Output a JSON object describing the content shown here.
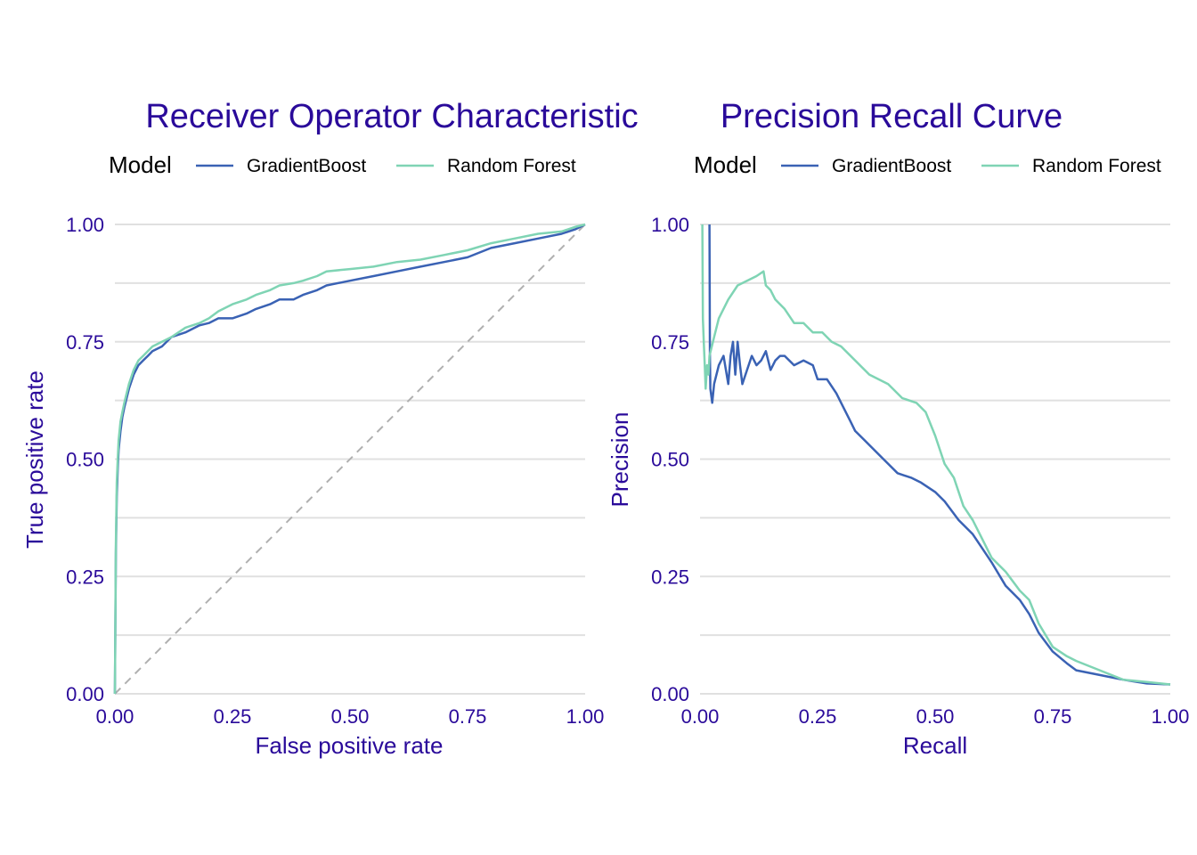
{
  "colors": {
    "accent_text": "#2a0a9a",
    "gradientboost": "#3a62b4",
    "random_forest": "#7fd4b4",
    "gridline": "#e0e0e0",
    "baseline": "#b0b0b0"
  },
  "chart_data": [
    {
      "type": "line",
      "title": "Receiver Operator Characteristic",
      "xlabel": "False positive rate",
      "ylabel": "True positive rate",
      "xlim": [
        0,
        1
      ],
      "ylim": [
        0,
        1
      ],
      "x_ticks": [
        "0.00",
        "0.25",
        "0.50",
        "0.75",
        "1.00"
      ],
      "y_ticks": [
        "0.00",
        "0.25",
        "0.50",
        "0.75",
        "1.00"
      ],
      "grid": true,
      "legend": {
        "title": "Model",
        "placement": "top-left",
        "entries": [
          "GradientBoost",
          "Random Forest"
        ]
      },
      "reference_line": {
        "style": "dashed",
        "from": [
          0,
          0
        ],
        "to": [
          1,
          1
        ]
      },
      "series": [
        {
          "name": "GradientBoost",
          "x": [
            0,
            0.002,
            0.004,
            0.006,
            0.008,
            0.012,
            0.016,
            0.02,
            0.025,
            0.03,
            0.04,
            0.05,
            0.06,
            0.07,
            0.08,
            0.1,
            0.12,
            0.15,
            0.18,
            0.2,
            0.22,
            0.25,
            0.28,
            0.3,
            0.33,
            0.35,
            0.38,
            0.4,
            0.43,
            0.45,
            0.5,
            0.55,
            0.6,
            0.65,
            0.7,
            0.75,
            0.8,
            0.85,
            0.9,
            0.95,
            0.98,
            1.0
          ],
          "y": [
            0,
            0.3,
            0.42,
            0.48,
            0.52,
            0.56,
            0.59,
            0.61,
            0.63,
            0.65,
            0.68,
            0.7,
            0.71,
            0.72,
            0.73,
            0.74,
            0.76,
            0.77,
            0.785,
            0.79,
            0.8,
            0.8,
            0.81,
            0.82,
            0.83,
            0.84,
            0.84,
            0.85,
            0.86,
            0.87,
            0.88,
            0.89,
            0.9,
            0.91,
            0.92,
            0.93,
            0.95,
            0.96,
            0.97,
            0.98,
            0.99,
            1.0
          ]
        },
        {
          "name": "Random Forest",
          "x": [
            0,
            0.002,
            0.004,
            0.006,
            0.008,
            0.012,
            0.016,
            0.02,
            0.025,
            0.03,
            0.04,
            0.05,
            0.06,
            0.07,
            0.08,
            0.1,
            0.12,
            0.15,
            0.18,
            0.2,
            0.22,
            0.25,
            0.28,
            0.3,
            0.33,
            0.35,
            0.38,
            0.4,
            0.43,
            0.45,
            0.5,
            0.55,
            0.6,
            0.65,
            0.7,
            0.75,
            0.8,
            0.85,
            0.9,
            0.95,
            0.98,
            1.0
          ],
          "y": [
            0,
            0.32,
            0.45,
            0.5,
            0.54,
            0.58,
            0.6,
            0.62,
            0.64,
            0.66,
            0.69,
            0.71,
            0.72,
            0.73,
            0.74,
            0.75,
            0.76,
            0.78,
            0.79,
            0.8,
            0.815,
            0.83,
            0.84,
            0.85,
            0.86,
            0.87,
            0.875,
            0.88,
            0.89,
            0.9,
            0.905,
            0.91,
            0.92,
            0.925,
            0.935,
            0.945,
            0.96,
            0.97,
            0.98,
            0.985,
            0.995,
            1.0
          ]
        }
      ]
    },
    {
      "type": "line",
      "title": "Precision Recall Curve",
      "xlabel": "Recall",
      "ylabel": "Precision",
      "xlim": [
        0,
        1
      ],
      "ylim": [
        0,
        1
      ],
      "x_ticks": [
        "0.00",
        "0.25",
        "0.50",
        "0.75",
        "1.00"
      ],
      "y_ticks": [
        "0.00",
        "0.25",
        "0.50",
        "0.75",
        "1.00"
      ],
      "grid": true,
      "legend": {
        "title": "Model",
        "placement": "top-left",
        "entries": [
          "GradientBoost",
          "Random Forest"
        ]
      },
      "series": [
        {
          "name": "GradientBoost",
          "x": [
            0.02,
            0.021,
            0.022,
            0.026,
            0.03,
            0.04,
            0.05,
            0.06,
            0.065,
            0.07,
            0.075,
            0.08,
            0.085,
            0.09,
            0.1,
            0.11,
            0.12,
            0.13,
            0.14,
            0.15,
            0.16,
            0.17,
            0.18,
            0.2,
            0.22,
            0.24,
            0.25,
            0.27,
            0.29,
            0.3,
            0.32,
            0.33,
            0.35,
            0.37,
            0.39,
            0.4,
            0.42,
            0.45,
            0.47,
            0.5,
            0.52,
            0.55,
            0.58,
            0.6,
            0.62,
            0.65,
            0.68,
            0.7,
            0.72,
            0.75,
            0.78,
            0.8,
            0.85,
            0.9,
            0.95,
            1.0
          ],
          "y": [
            1.0,
            0.72,
            0.65,
            0.62,
            0.66,
            0.7,
            0.72,
            0.66,
            0.72,
            0.75,
            0.68,
            0.75,
            0.7,
            0.66,
            0.69,
            0.72,
            0.7,
            0.71,
            0.73,
            0.69,
            0.71,
            0.72,
            0.72,
            0.7,
            0.71,
            0.7,
            0.67,
            0.67,
            0.64,
            0.62,
            0.58,
            0.56,
            0.54,
            0.52,
            0.5,
            0.49,
            0.47,
            0.46,
            0.45,
            0.43,
            0.41,
            0.37,
            0.34,
            0.31,
            0.28,
            0.23,
            0.2,
            0.17,
            0.13,
            0.09,
            0.065,
            0.05,
            0.04,
            0.03,
            0.022,
            0.02
          ]
        },
        {
          "name": "Random Forest",
          "x": [
            0.005,
            0.006,
            0.008,
            0.01,
            0.012,
            0.015,
            0.018,
            0.02,
            0.03,
            0.04,
            0.06,
            0.08,
            0.1,
            0.12,
            0.135,
            0.14,
            0.15,
            0.16,
            0.18,
            0.2,
            0.22,
            0.24,
            0.26,
            0.28,
            0.3,
            0.33,
            0.36,
            0.4,
            0.43,
            0.46,
            0.48,
            0.5,
            0.52,
            0.54,
            0.56,
            0.58,
            0.6,
            0.62,
            0.65,
            0.68,
            0.7,
            0.72,
            0.75,
            0.78,
            0.8,
            0.85,
            0.9,
            0.95,
            1.0
          ],
          "y": [
            1.0,
            0.8,
            0.75,
            0.7,
            0.65,
            0.7,
            0.68,
            0.72,
            0.76,
            0.8,
            0.84,
            0.87,
            0.88,
            0.89,
            0.9,
            0.87,
            0.86,
            0.84,
            0.82,
            0.79,
            0.79,
            0.77,
            0.77,
            0.75,
            0.74,
            0.71,
            0.68,
            0.66,
            0.63,
            0.62,
            0.6,
            0.55,
            0.49,
            0.46,
            0.4,
            0.37,
            0.33,
            0.29,
            0.26,
            0.22,
            0.2,
            0.15,
            0.1,
            0.08,
            0.07,
            0.05,
            0.03,
            0.025,
            0.02
          ]
        }
      ]
    }
  ]
}
